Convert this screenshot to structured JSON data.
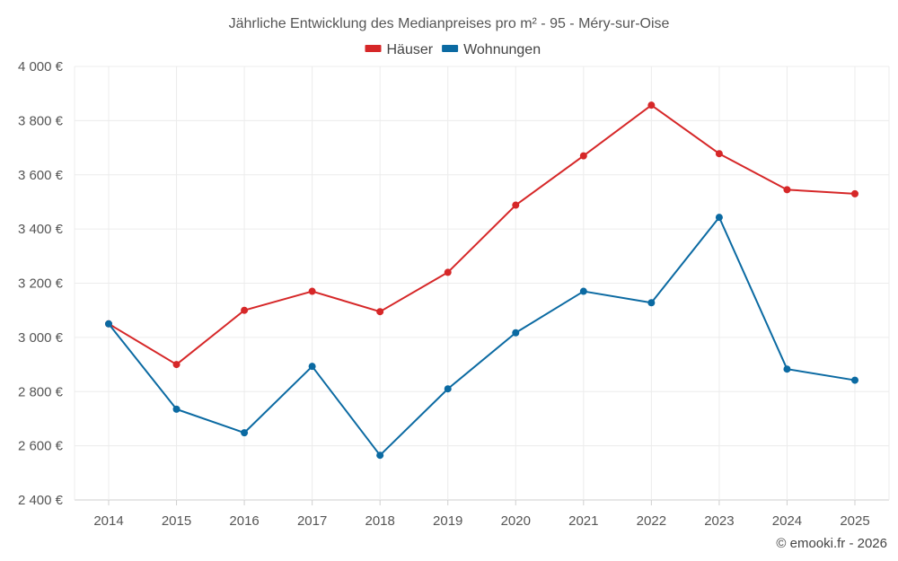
{
  "chart_data": {
    "type": "line",
    "title": "Jährliche Entwicklung des Medianpreises pro m² - 95 - Méry-sur-Oise",
    "categories": [
      "2014",
      "2015",
      "2016",
      "2017",
      "2018",
      "2019",
      "2020",
      "2021",
      "2022",
      "2023",
      "2024",
      "2025"
    ],
    "series": [
      {
        "name": "Häuser",
        "color": "#d62728",
        "values": [
          3050,
          2900,
          3100,
          3170,
          3095,
          3240,
          3488,
          3670,
          3857,
          3678,
          3545,
          3530
        ]
      },
      {
        "name": "Wohnungen",
        "color": "#0b6aa2",
        "values": [
          3050,
          2735,
          2648,
          2893,
          2565,
          2810,
          3017,
          3170,
          3128,
          3443,
          2883,
          2842
        ]
      }
    ],
    "ylim": [
      2400,
      4000
    ],
    "yticks": [
      2400,
      2600,
      2800,
      3000,
      3200,
      3400,
      3600,
      3800,
      4000
    ],
    "ytick_labels": [
      "2 400 €",
      "2 600 €",
      "2 800 €",
      "3 000 €",
      "3 200 €",
      "3 400 €",
      "3 600 €",
      "3 800 €",
      "4 000 €"
    ],
    "xlabel": "",
    "ylabel": "",
    "grid": true,
    "legend_position": "top-center"
  },
  "footer": {
    "credit": "© emooki.fr - 2026"
  }
}
